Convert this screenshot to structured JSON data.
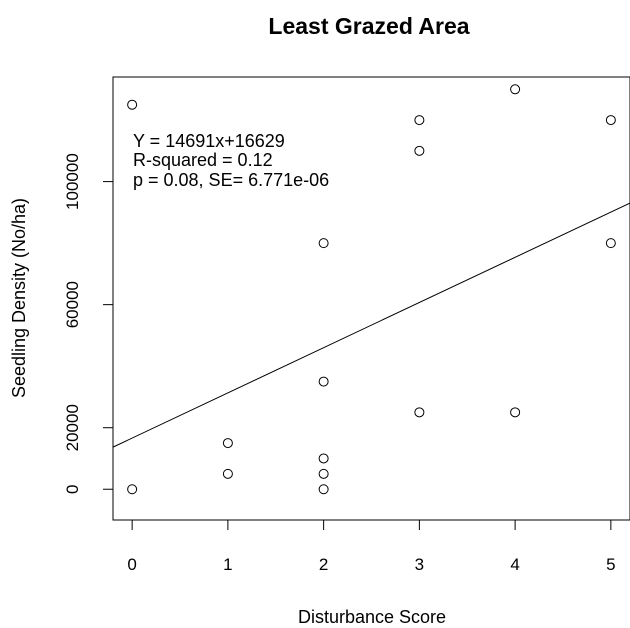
{
  "chart_data": {
    "type": "scatter",
    "title": "Least Grazed Area",
    "xlabel": "Disturbance Score",
    "ylabel": "Seedling Density (No/ha)",
    "xlim": [
      -0.2,
      5.2
    ],
    "ylim": [
      -10000,
      134000
    ],
    "x_ticks": [
      0,
      1,
      2,
      3,
      4,
      5
    ],
    "y_ticks": [
      0,
      20000,
      60000,
      100000
    ],
    "grid": false,
    "legend": "none",
    "points": [
      {
        "x": 0,
        "y": 125000
      },
      {
        "x": 0,
        "y": 0
      },
      {
        "x": 1,
        "y": 15000
      },
      {
        "x": 1,
        "y": 5000
      },
      {
        "x": 2,
        "y": 80000
      },
      {
        "x": 2,
        "y": 35000
      },
      {
        "x": 2,
        "y": 10000
      },
      {
        "x": 2,
        "y": 5000
      },
      {
        "x": 2,
        "y": 0
      },
      {
        "x": 3,
        "y": 120000
      },
      {
        "x": 3,
        "y": 110000
      },
      {
        "x": 3,
        "y": 25000
      },
      {
        "x": 4,
        "y": 130000
      },
      {
        "x": 4,
        "y": 25000
      },
      {
        "x": 5,
        "y": 120000
      },
      {
        "x": 5,
        "y": 80000
      }
    ],
    "regression": {
      "slope": 14691,
      "intercept": 16629
    },
    "annotations": [
      "Y = 14691x+16629",
      " R-squared = 0.12",
      "p = 0.08, SE= 6.771e-06"
    ]
  }
}
